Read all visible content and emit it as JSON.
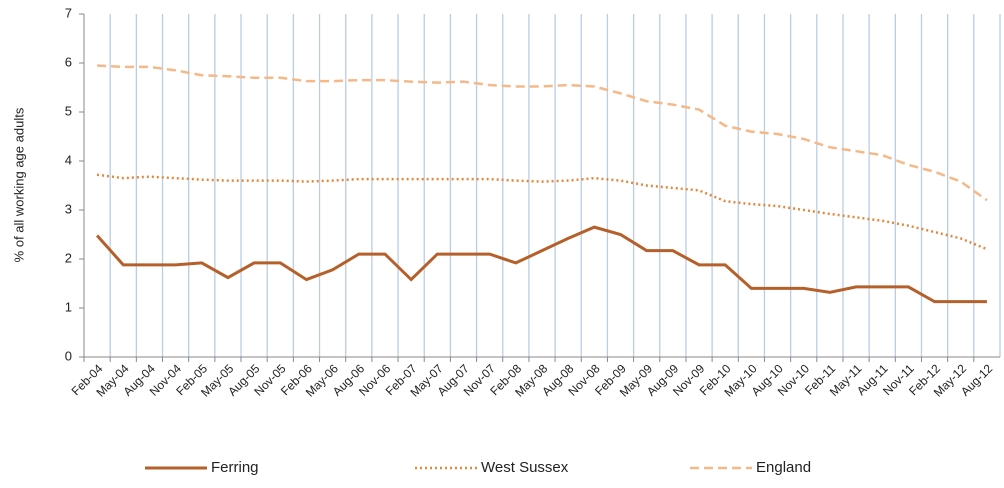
{
  "chart_data": {
    "type": "line",
    "y_label": "% of all working age adults",
    "categories": [
      "Feb-04",
      "May-04",
      "Aug-04",
      "Nov-04",
      "Feb-05",
      "May-05",
      "Aug-05",
      "Nov-05",
      "Feb-06",
      "May-06",
      "Aug-06",
      "Nov-06",
      "Feb-07",
      "May-07",
      "Aug-07",
      "Nov-07",
      "Feb-08",
      "May-08",
      "Aug-08",
      "Nov-08",
      "Feb-09",
      "May-09",
      "Aug-09",
      "Nov-09",
      "Feb-10",
      "May-10",
      "Aug-10",
      "Nov-10",
      "Feb-11",
      "May-11",
      "Aug-11",
      "Nov-11",
      "Feb-12",
      "May-12",
      "Aug-12"
    ],
    "series": [
      {
        "name": "Ferring",
        "color": "#b5602a",
        "dash": "solid",
        "values": [
          2.48,
          1.88,
          1.88,
          1.88,
          1.92,
          1.62,
          1.92,
          1.92,
          1.58,
          1.78,
          2.1,
          2.1,
          1.58,
          2.1,
          2.1,
          2.1,
          1.92,
          2.17,
          2.42,
          2.65,
          2.5,
          2.17,
          2.17,
          1.88,
          1.88,
          1.4,
          1.4,
          1.4,
          1.32,
          1.43,
          1.43,
          1.43,
          1.13,
          1.13,
          1.13
        ]
      },
      {
        "name": "West Sussex",
        "color": "#e0893c",
        "dash": "dotted",
        "values": [
          3.72,
          3.65,
          3.68,
          3.65,
          3.62,
          3.6,
          3.6,
          3.6,
          3.58,
          3.6,
          3.63,
          3.63,
          3.63,
          3.63,
          3.63,
          3.63,
          3.6,
          3.58,
          3.6,
          3.65,
          3.6,
          3.5,
          3.45,
          3.4,
          3.18,
          3.12,
          3.08,
          3.0,
          2.92,
          2.85,
          2.78,
          2.68,
          2.55,
          2.42,
          2.2
        ]
      },
      {
        "name": "England",
        "color": "#f5b888",
        "dash": "dashed",
        "values": [
          5.95,
          5.92,
          5.92,
          5.85,
          5.75,
          5.73,
          5.7,
          5.7,
          5.63,
          5.63,
          5.65,
          5.65,
          5.62,
          5.6,
          5.62,
          5.55,
          5.52,
          5.52,
          5.55,
          5.52,
          5.38,
          5.22,
          5.15,
          5.05,
          4.72,
          4.6,
          4.55,
          4.45,
          4.28,
          4.2,
          4.12,
          3.92,
          3.78,
          3.58,
          3.2
        ]
      }
    ],
    "ylim": [
      0,
      7
    ],
    "yticks": [
      0,
      1,
      2,
      3,
      4,
      5,
      6,
      7
    ],
    "grid": "vertical",
    "legend": "bottom"
  }
}
